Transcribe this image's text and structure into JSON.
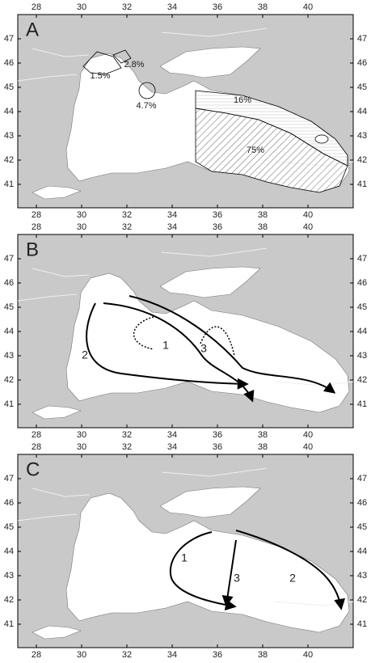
{
  "panels": [
    {
      "label": "A",
      "annotations": [
        "1.5%",
        "2.8%",
        "4.7%",
        "16%",
        "75%"
      ]
    },
    {
      "label": "B",
      "annotations": [
        "1",
        "2",
        "3"
      ]
    },
    {
      "label": "C",
      "annotations": [
        "1",
        "3",
        "2"
      ]
    }
  ],
  "lon_ticks": [
    28,
    30,
    32,
    34,
    36,
    38,
    40
  ],
  "lat_ticks": [
    41,
    42,
    43,
    44,
    45,
    46,
    47
  ]
}
